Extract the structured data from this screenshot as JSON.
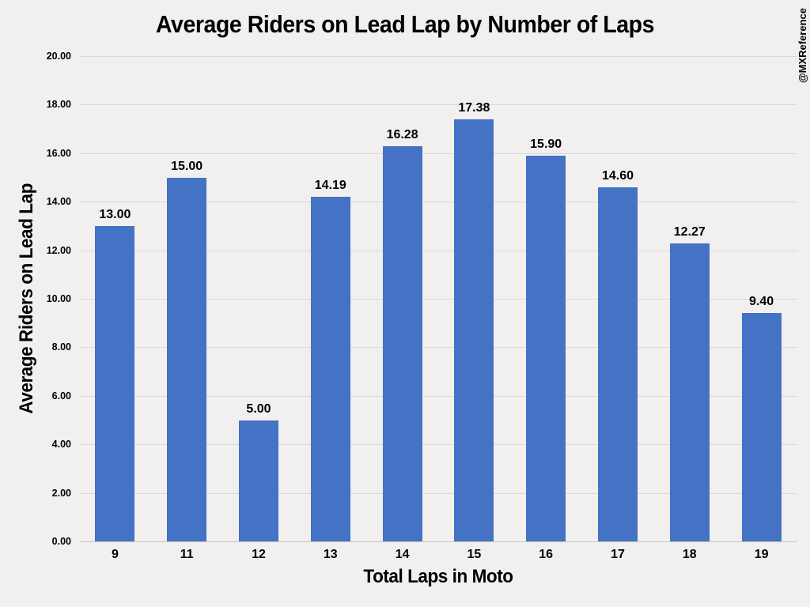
{
  "page": {
    "watermark": "@MXReference"
  },
  "chart_data": {
    "type": "bar",
    "title": "Average Riders on Lead Lap by Number of Laps",
    "xlabel": "Total Laps in Moto",
    "ylabel": "Average Riders on Lead Lap",
    "categories": [
      "9",
      "11",
      "12",
      "13",
      "14",
      "15",
      "16",
      "17",
      "18",
      "19"
    ],
    "values": [
      13.0,
      15.0,
      5.0,
      14.19,
      16.28,
      17.38,
      15.9,
      14.6,
      12.27,
      9.4
    ],
    "value_labels": [
      "13.00",
      "15.00",
      "5.00",
      "14.19",
      "16.28",
      "17.38",
      "15.90",
      "14.60",
      "12.27",
      "9.40"
    ],
    "ylim": [
      0,
      20
    ],
    "ytick_step": 2,
    "ytick_decimals": 2,
    "grid": true,
    "legend": false,
    "colors": {
      "bar": "#4472C4",
      "background": "#F1F0EF",
      "gridline": "#D9D8D7",
      "text": "#000000"
    }
  }
}
